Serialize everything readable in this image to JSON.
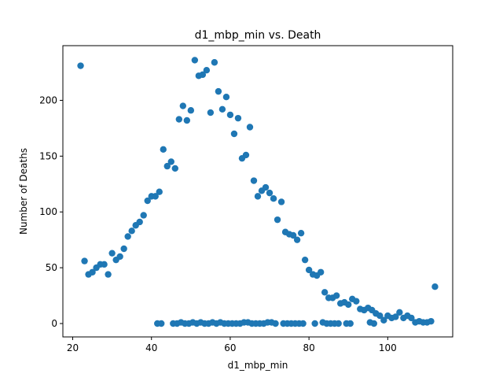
{
  "chart_data": {
    "type": "scatter",
    "title": "d1_mbp_min vs. Death",
    "xlabel": "d1_mbp_min",
    "ylabel": "Number of Deaths",
    "xlim": [
      17.5,
      116.5
    ],
    "ylim": [
      -12,
      249
    ],
    "xticks": [
      20,
      40,
      60,
      80,
      100
    ],
    "yticks": [
      0,
      50,
      100,
      150,
      200
    ],
    "grid": false,
    "marker_color": "#1f77b4",
    "series": [
      {
        "points": [
          [
            22,
            231
          ],
          [
            23,
            56
          ],
          [
            24,
            44
          ],
          [
            25,
            46
          ],
          [
            26,
            50
          ],
          [
            27,
            53
          ],
          [
            28,
            53
          ],
          [
            29,
            44
          ],
          [
            30,
            63
          ],
          [
            31,
            57
          ],
          [
            32,
            60
          ],
          [
            33,
            67
          ],
          [
            34,
            78
          ],
          [
            35,
            83
          ],
          [
            36,
            88
          ],
          [
            37,
            91
          ],
          [
            38,
            97
          ],
          [
            39,
            110
          ],
          [
            40,
            114
          ],
          [
            41,
            114
          ],
          [
            42,
            118
          ],
          [
            43,
            156
          ],
          [
            44,
            141
          ],
          [
            45,
            145
          ],
          [
            46,
            139
          ],
          [
            47,
            183
          ],
          [
            48,
            195
          ],
          [
            49,
            182
          ],
          [
            50,
            191
          ],
          [
            51,
            236
          ],
          [
            52,
            222
          ],
          [
            53,
            223
          ],
          [
            54,
            227
          ],
          [
            55,
            189
          ],
          [
            56,
            234
          ],
          [
            57,
            208
          ],
          [
            58,
            192
          ],
          [
            59,
            203
          ],
          [
            60,
            187
          ],
          [
            61,
            170
          ],
          [
            62,
            184
          ],
          [
            63,
            148
          ],
          [
            64,
            151
          ],
          [
            65,
            176
          ],
          [
            66,
            128
          ],
          [
            67,
            114
          ],
          [
            68,
            119
          ],
          [
            69,
            122
          ],
          [
            70,
            117
          ],
          [
            71,
            112
          ],
          [
            72,
            93
          ],
          [
            73,
            109
          ],
          [
            74,
            82
          ],
          [
            75,
            80
          ],
          [
            76,
            79
          ],
          [
            77,
            75
          ],
          [
            78,
            81
          ],
          [
            79,
            57
          ],
          [
            80,
            48
          ],
          [
            81,
            44
          ],
          [
            82,
            43
          ],
          [
            83,
            46
          ],
          [
            84,
            28
          ],
          [
            85,
            23
          ],
          [
            86,
            23
          ],
          [
            87,
            25
          ],
          [
            88,
            18
          ],
          [
            89,
            19
          ],
          [
            90,
            17
          ],
          [
            91,
            22
          ],
          [
            92,
            20
          ],
          [
            93,
            13
          ],
          [
            94,
            12
          ],
          [
            95,
            14
          ],
          [
            96,
            12
          ],
          [
            97,
            9
          ],
          [
            98,
            7
          ],
          [
            99,
            3
          ],
          [
            100,
            7
          ],
          [
            101,
            5
          ],
          [
            102,
            6
          ],
          [
            103,
            10
          ],
          [
            104,
            5
          ],
          [
            105,
            7
          ],
          [
            106,
            5
          ],
          [
            107,
            1
          ],
          [
            108,
            2
          ],
          [
            109,
            1
          ],
          [
            110,
            1
          ],
          [
            111,
            2
          ],
          [
            112,
            33
          ],
          [
            41.5,
            0
          ],
          [
            42.5,
            0
          ],
          [
            45.5,
            0
          ],
          [
            46.5,
            0
          ],
          [
            47.5,
            1
          ],
          [
            48.5,
            0
          ],
          [
            49.5,
            0
          ],
          [
            50.5,
            1
          ],
          [
            51.5,
            0
          ],
          [
            52.5,
            1
          ],
          [
            53.5,
            0
          ],
          [
            54.5,
            0
          ],
          [
            55.5,
            1
          ],
          [
            56.5,
            0
          ],
          [
            57.5,
            1
          ],
          [
            58.5,
            0
          ],
          [
            59.5,
            0
          ],
          [
            60.5,
            0
          ],
          [
            61.5,
            0
          ],
          [
            62.5,
            0
          ],
          [
            63.5,
            1
          ],
          [
            64.5,
            1
          ],
          [
            65.5,
            0
          ],
          [
            66.5,
            0
          ],
          [
            67.5,
            0
          ],
          [
            68.5,
            0
          ],
          [
            69.5,
            1
          ],
          [
            70.5,
            1
          ],
          [
            71.5,
            0
          ],
          [
            73.5,
            0
          ],
          [
            74.5,
            0
          ],
          [
            75.5,
            0
          ],
          [
            76.5,
            0
          ],
          [
            77.5,
            0
          ],
          [
            78.5,
            0
          ],
          [
            81.5,
            0
          ],
          [
            83.5,
            1
          ],
          [
            84.5,
            0
          ],
          [
            85.5,
            0
          ],
          [
            86.5,
            0
          ],
          [
            87.5,
            0
          ],
          [
            89.5,
            0
          ],
          [
            90.5,
            0
          ],
          [
            95.5,
            1
          ],
          [
            96.5,
            0
          ]
        ]
      }
    ]
  }
}
